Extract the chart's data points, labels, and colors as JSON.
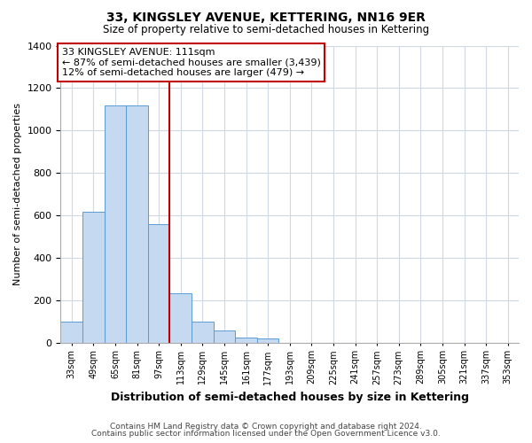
{
  "title": "33, KINGSLEY AVENUE, KETTERING, NN16 9ER",
  "subtitle": "Size of property relative to semi-detached houses in Kettering",
  "xlabel": "Distribution of semi-detached houses by size in Kettering",
  "ylabel": "Number of semi-detached properties",
  "bin_labels": [
    "33sqm",
    "49sqm",
    "65sqm",
    "81sqm",
    "97sqm",
    "113sqm",
    "129sqm",
    "145sqm",
    "161sqm",
    "177sqm",
    "193sqm",
    "209sqm",
    "225sqm",
    "241sqm",
    "257sqm",
    "273sqm",
    "289sqm",
    "305sqm",
    "321sqm",
    "337sqm",
    "353sqm"
  ],
  "bin_edges": [
    33,
    49,
    65,
    81,
    97,
    113,
    129,
    145,
    161,
    177,
    193,
    209,
    225,
    241,
    257,
    273,
    289,
    305,
    321,
    337,
    353
  ],
  "bar_heights": [
    100,
    615,
    1120,
    1120,
    560,
    230,
    100,
    55,
    25,
    20,
    0,
    0,
    0,
    0,
    0,
    0,
    0,
    0,
    0,
    0
  ],
  "bar_color": "#c5d9f1",
  "bar_edge_color": "#5b9bd5",
  "property_line_x": 113,
  "property_line_color": "#c00000",
  "annotation_title": "33 KINGSLEY AVENUE: 111sqm",
  "annotation_line1": "← 87% of semi-detached houses are smaller (3,439)",
  "annotation_line2": "12% of semi-detached houses are larger (479) →",
  "annotation_box_color": "#ffffff",
  "annotation_box_edge": "#c00000",
  "ylim": [
    0,
    1400
  ],
  "yticks": [
    0,
    200,
    400,
    600,
    800,
    1000,
    1200,
    1400
  ],
  "footnote1": "Contains HM Land Registry data © Crown copyright and database right 2024.",
  "footnote2": "Contains public sector information licensed under the Open Government Licence v3.0.",
  "background_color": "#ffffff",
  "grid_color": "#d0d8e4"
}
